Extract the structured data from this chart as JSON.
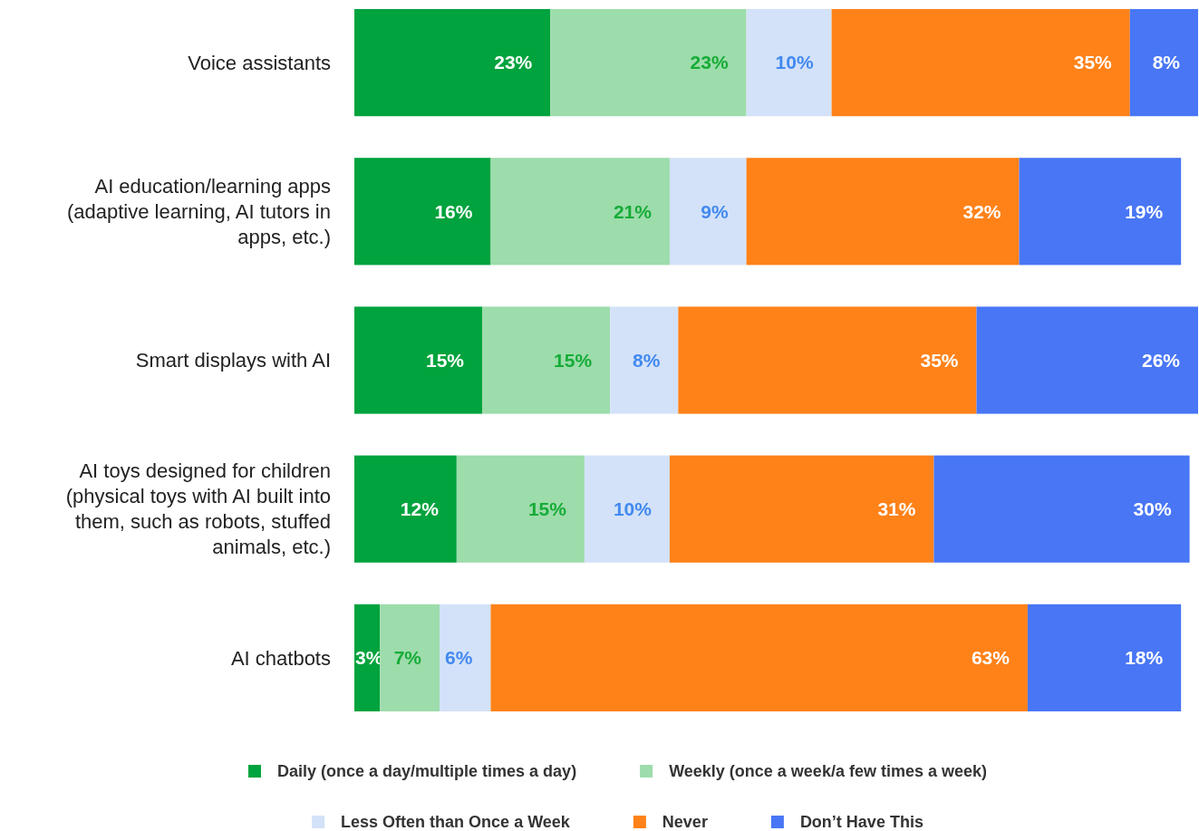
{
  "chart_data": {
    "type": "bar",
    "orientation": "horizontal",
    "stacked": true,
    "tick_labels": "y",
    "legend": "bottom",
    "categories": [
      "Voice assistants",
      "AI education/learning apps (adaptive learning, AI tutors in apps, etc.)",
      "Smart displays with AI",
      "AI toys designed for children (physical toys with AI built into them, such as robots, stuffed animals, etc.)",
      "AI chatbots"
    ],
    "series": [
      {
        "name": "Daily (once a day/multiple times a day)",
        "color": "#00a33d",
        "values": [
          23,
          16,
          15,
          12,
          3
        ],
        "value_labels": [
          "23%",
          "16%",
          "15%",
          "12%",
          "3%"
        ]
      },
      {
        "name": "Weekly (once a week/a few times a week)",
        "color": "#9ddcab",
        "values": [
          23,
          21,
          15,
          15,
          7
        ],
        "value_labels": [
          "23%",
          "21%",
          "15%",
          "15%",
          "7%"
        ]
      },
      {
        "name": "Less Often than Once a Week",
        "color": "#d3e2f8",
        "values": [
          10,
          9,
          8,
          10,
          6
        ],
        "value_labels": [
          "10%",
          "9%",
          "8%",
          "10%",
          "6%"
        ]
      },
      {
        "name": "Never",
        "color": "#ff8219",
        "values": [
          35,
          32,
          35,
          31,
          63
        ],
        "value_labels": [
          "35%",
          "32%",
          "35%",
          "31%",
          "63%"
        ]
      },
      {
        "name": "Don’t Have This",
        "color": "#4876f5",
        "values": [
          8,
          19,
          26,
          30,
          18
        ],
        "value_labels": [
          "8%",
          "19%",
          "26%",
          "30%",
          "18%"
        ]
      }
    ]
  }
}
